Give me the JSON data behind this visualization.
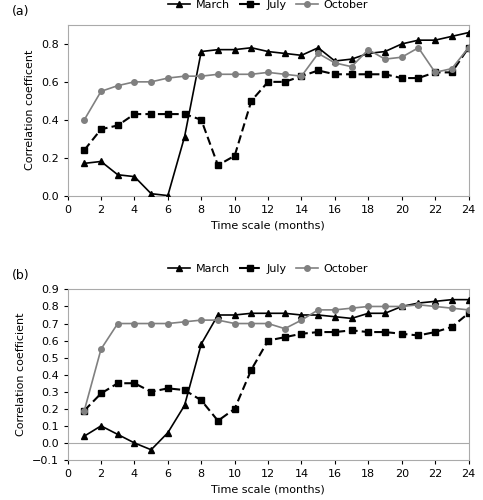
{
  "panel_a": {
    "title": "(a)",
    "ylabel": "Correlation coefficent",
    "xlabel": "Time scale (months)",
    "ylim": [
      0,
      0.9
    ],
    "yticks": [
      0,
      0.2,
      0.4,
      0.6,
      0.8
    ],
    "xlim": [
      0,
      24
    ],
    "xticks": [
      0,
      2,
      4,
      6,
      8,
      10,
      12,
      14,
      16,
      18,
      20,
      22,
      24
    ],
    "march_x": [
      1,
      2,
      3,
      4,
      5,
      6,
      7,
      8,
      9,
      10,
      11,
      12,
      13,
      14,
      15,
      16,
      17,
      18,
      19,
      20,
      21,
      22,
      23,
      24
    ],
    "march_y": [
      0.17,
      0.18,
      0.11,
      0.1,
      0.01,
      0.0,
      0.31,
      0.76,
      0.77,
      0.77,
      0.78,
      0.76,
      0.75,
      0.74,
      0.78,
      0.71,
      0.72,
      0.75,
      0.76,
      0.8,
      0.82,
      0.82,
      0.84,
      0.86
    ],
    "july_x": [
      1,
      2,
      3,
      4,
      5,
      6,
      7,
      8,
      9,
      10,
      11,
      12,
      13,
      14,
      15,
      16,
      17,
      18,
      19,
      20,
      21,
      22,
      23,
      24
    ],
    "july_y": [
      0.24,
      0.35,
      0.37,
      0.43,
      0.43,
      0.43,
      0.43,
      0.4,
      0.16,
      0.21,
      0.5,
      0.6,
      0.6,
      0.63,
      0.66,
      0.64,
      0.64,
      0.64,
      0.64,
      0.62,
      0.62,
      0.65,
      0.65,
      0.78
    ],
    "oct_x": [
      1,
      2,
      3,
      4,
      5,
      6,
      7,
      8,
      9,
      10,
      11,
      12,
      13,
      14,
      15,
      16,
      17,
      18,
      19,
      20,
      21,
      22,
      23,
      24
    ],
    "oct_y": [
      0.4,
      0.55,
      0.58,
      0.6,
      0.6,
      0.62,
      0.63,
      0.63,
      0.64,
      0.64,
      0.64,
      0.65,
      0.64,
      0.63,
      0.75,
      0.7,
      0.68,
      0.77,
      0.72,
      0.73,
      0.78,
      0.65,
      0.67,
      0.78
    ]
  },
  "panel_b": {
    "title": "(b)",
    "ylabel": "Correlation coefficient",
    "xlabel": "Time scale (months)",
    "ylim": [
      -0.1,
      0.9
    ],
    "yticks": [
      -0.1,
      0,
      0.1,
      0.2,
      0.3,
      0.4,
      0.5,
      0.6,
      0.7,
      0.8,
      0.9
    ],
    "xlim": [
      0,
      24
    ],
    "xticks": [
      0,
      2,
      4,
      6,
      8,
      10,
      12,
      14,
      16,
      18,
      20,
      22,
      24
    ],
    "march_x": [
      1,
      2,
      3,
      4,
      5,
      6,
      7,
      8,
      9,
      10,
      11,
      12,
      13,
      14,
      15,
      16,
      17,
      18,
      19,
      20,
      21,
      22,
      23,
      24
    ],
    "march_y": [
      0.04,
      0.1,
      0.05,
      0.0,
      -0.04,
      0.06,
      0.22,
      0.58,
      0.75,
      0.75,
      0.76,
      0.76,
      0.76,
      0.75,
      0.75,
      0.74,
      0.73,
      0.76,
      0.76,
      0.8,
      0.82,
      0.83,
      0.84,
      0.84
    ],
    "july_x": [
      1,
      2,
      3,
      4,
      5,
      6,
      7,
      8,
      9,
      10,
      11,
      12,
      13,
      14,
      15,
      16,
      17,
      18,
      19,
      20,
      21,
      22,
      23,
      24
    ],
    "july_y": [
      0.19,
      0.29,
      0.35,
      0.35,
      0.3,
      0.32,
      0.31,
      0.25,
      0.13,
      0.2,
      0.43,
      0.6,
      0.62,
      0.64,
      0.65,
      0.65,
      0.66,
      0.65,
      0.65,
      0.64,
      0.63,
      0.65,
      0.68,
      0.76
    ],
    "oct_x": [
      1,
      2,
      3,
      4,
      5,
      6,
      7,
      8,
      9,
      10,
      11,
      12,
      13,
      14,
      15,
      16,
      17,
      18,
      19,
      20,
      21,
      22,
      23,
      24
    ],
    "oct_y": [
      0.19,
      0.55,
      0.7,
      0.7,
      0.7,
      0.7,
      0.71,
      0.72,
      0.72,
      0.7,
      0.7,
      0.7,
      0.67,
      0.72,
      0.78,
      0.78,
      0.79,
      0.8,
      0.8,
      0.8,
      0.81,
      0.8,
      0.79,
      0.78
    ]
  },
  "legend_labels": [
    "March",
    "July",
    "October"
  ],
  "march_color": "black",
  "july_color": "black",
  "oct_color": "#808080",
  "march_marker": "^",
  "july_marker": "s",
  "oct_marker": "o",
  "march_linestyle": "-",
  "july_linestyle": "--",
  "oct_linestyle": "-",
  "march_linewidth": 1.2,
  "july_linewidth": 1.5,
  "oct_linewidth": 1.2,
  "markersize": 4,
  "fontsize": 9,
  "label_fontsize": 8,
  "tick_fontsize": 8,
  "spine_color": "#aaaaaa"
}
